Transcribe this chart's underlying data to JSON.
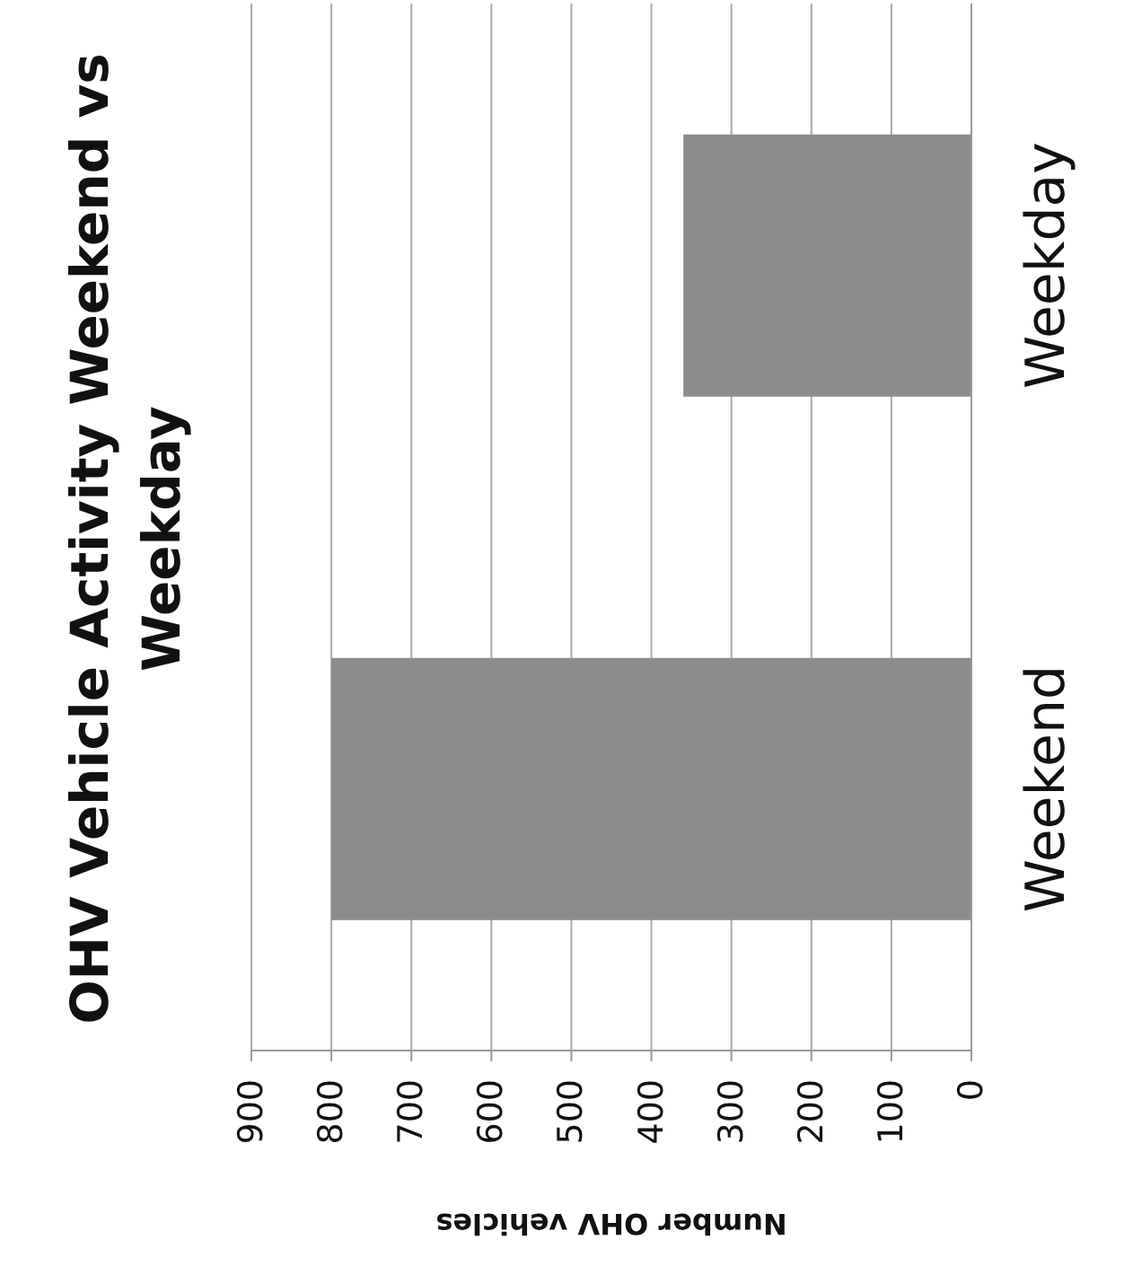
{
  "chart_data": {
    "type": "bar",
    "orientation": "horizontal",
    "title": "OHV Vehicle Activity Weekend vs Weekday",
    "xlabel": "Number OHV vehicles",
    "categories": [
      "Weekday",
      "Weekend"
    ],
    "values": [
      360,
      800
    ],
    "color": "#8c8c8c",
    "xlim": [
      900,
      0
    ],
    "xticks": [
      0,
      100,
      200,
      300,
      400,
      500,
      600,
      700,
      800,
      900
    ],
    "grid": "x"
  }
}
